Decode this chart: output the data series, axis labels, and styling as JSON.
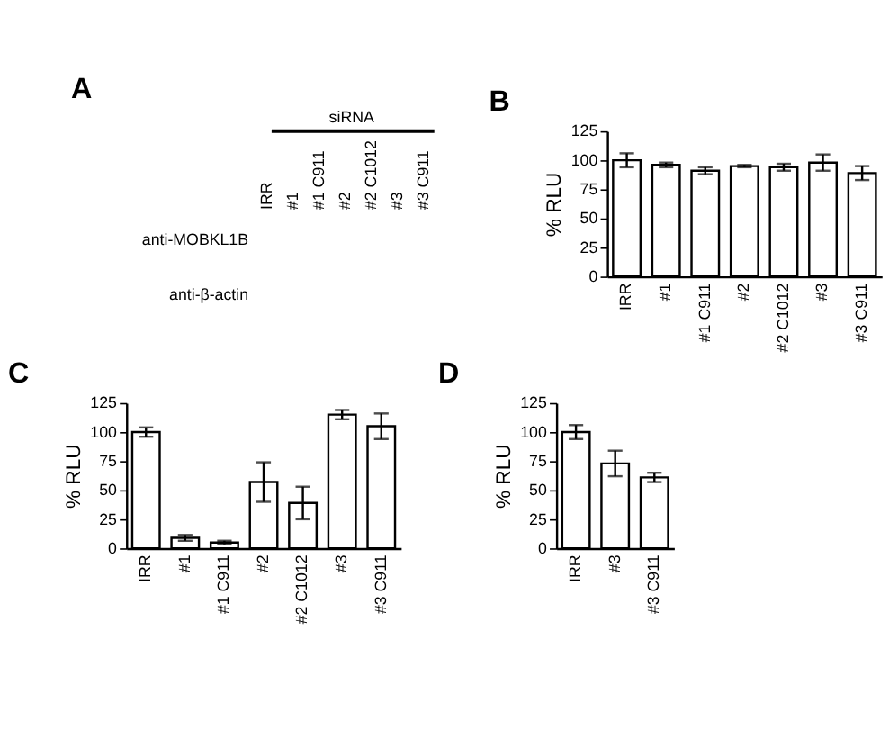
{
  "chart_data": [
    {
      "type": "other",
      "title": "A",
      "categories": [
        "IRR",
        "#1",
        "#1 C911",
        "#2",
        "#2 C1012",
        "#3",
        "#3 C911"
      ],
      "annotations": [
        "siRNA",
        "anti-MOBKL1B",
        "anti-β-actin"
      ]
    },
    {
      "type": "bar",
      "title": "B",
      "ylabel": "% RLU",
      "categories": [
        "IRR",
        "#1",
        "#1 C911",
        "#2",
        "#2 C1012",
        "#3",
        "#3 C911"
      ],
      "values": [
        100,
        96,
        91,
        95,
        94,
        98,
        89
      ],
      "errors": [
        6,
        2,
        3,
        1,
        3,
        7,
        6
      ],
      "color": "#ffffff",
      "ylim": [
        0,
        125
      ],
      "yticks": [
        0,
        25,
        50,
        75,
        100,
        125
      ]
    },
    {
      "type": "bar",
      "title": "C",
      "ylabel": "% RLU",
      "categories": [
        "IRR",
        "#1",
        "#1 C911",
        "#2",
        "#2 C1012",
        "#3",
        "#3 C911"
      ],
      "values": [
        100,
        9,
        5,
        57,
        39,
        115,
        105
      ],
      "errors": [
        4,
        2.5,
        1.5,
        17,
        14,
        4,
        11
      ],
      "color": "#ffffff",
      "ylim": [
        0,
        125
      ],
      "yticks": [
        0,
        25,
        50,
        75,
        100,
        125
      ]
    },
    {
      "type": "bar",
      "title": "D",
      "ylabel": "% RLU",
      "categories": [
        "IRR",
        "#3",
        "#3 C911"
      ],
      "values": [
        100,
        73,
        61
      ],
      "errors": [
        6,
        11,
        4
      ],
      "color": "#ffffff",
      "ylim": [
        0,
        125
      ],
      "yticks": [
        0,
        25,
        50,
        75,
        100,
        125
      ]
    }
  ]
}
